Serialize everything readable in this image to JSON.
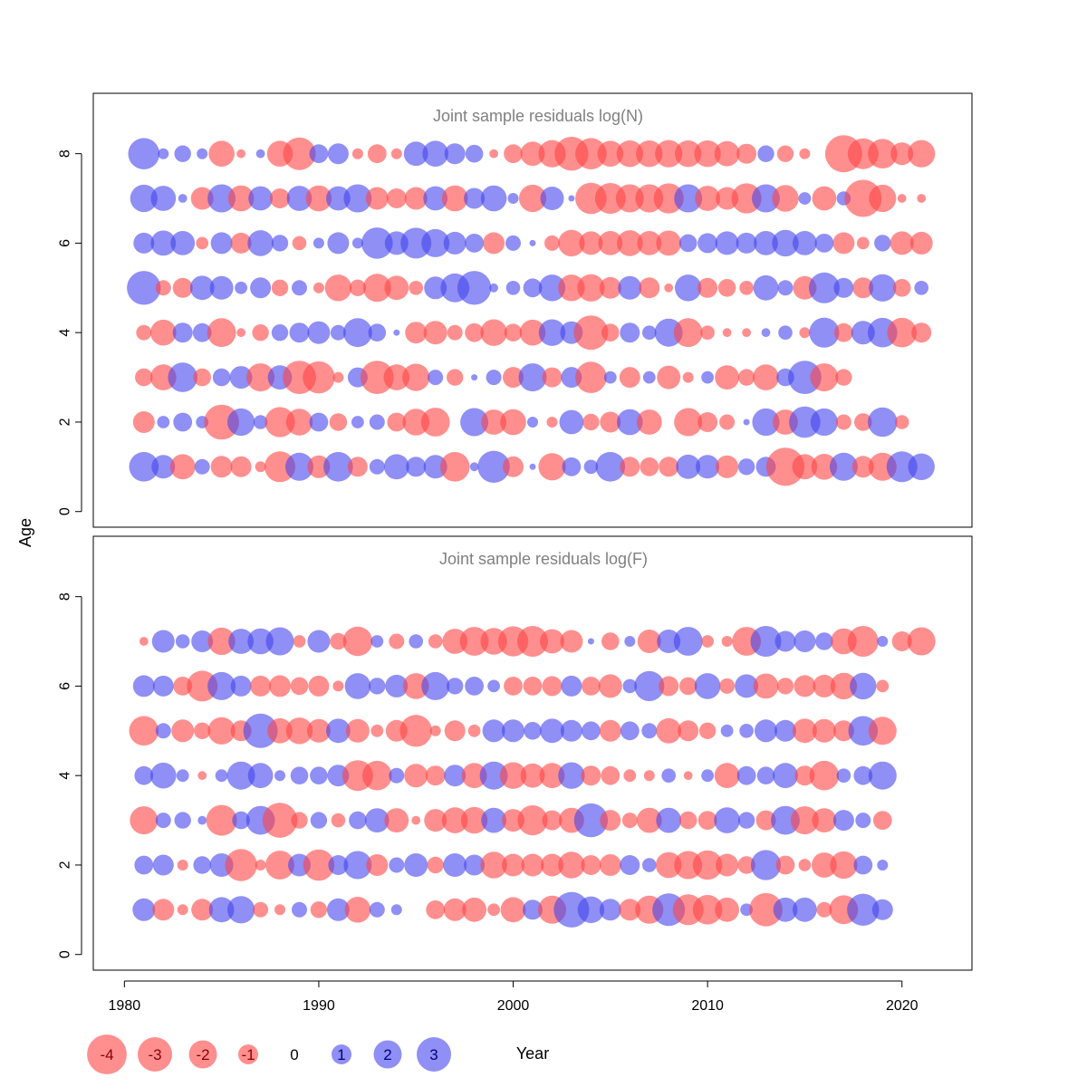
{
  "chart_data": {
    "type": "scatter",
    "subtype": "bubble",
    "xlabel": "Year",
    "ylabel": "Age",
    "xlim": [
      1978.4,
      2023.6
    ],
    "ylim": [
      -0.35,
      9.35
    ],
    "x_ticks": [
      1980,
      1990,
      2000,
      2010,
      2020
    ],
    "y_ticks": [
      0,
      2,
      4,
      6,
      8
    ],
    "colors": {
      "positive": "#4444ee",
      "negative": "#ff4444",
      "opacity": 0.6
    },
    "panels": [
      {
        "title": "Joint sample residuals log(N)",
        "years_start": 1981,
        "ages": [
          1,
          2,
          3,
          4,
          5,
          6,
          7,
          8
        ],
        "residuals": {
          "1": [
            2.2,
            1.4,
            -1.6,
            0.6,
            -1.2,
            -1.1,
            -0.3,
            -2.4,
            2.0,
            -1.3,
            2.2,
            -1.0,
            0.6,
            1.6,
            1.0,
            1.4,
            -2.2,
            0.2,
            2.6,
            -1.1,
            0.1,
            -1.9,
            0.9,
            0.5,
            2.2,
            -1.0,
            -0.9,
            -1.0,
            1.5,
            1.4,
            -1.3,
            0.7,
            1.0,
            -3.7,
            -1.6,
            -1.7,
            2.0,
            -1.2,
            -2.0,
            2.4,
            1.8
          ],
          "2": [
            -1.2,
            0.4,
            0.9,
            0.4,
            -3.1,
            1.9,
            0.5,
            -2.3,
            -1.8,
            0.9,
            -0.8,
            0.4,
            0.6,
            -0.9,
            -1.8,
            -2.1,
            0.0,
            2.0,
            -1.6,
            -1.7,
            0.3,
            -0.3,
            1.5,
            -0.7,
            -1.1,
            1.7,
            -1.6,
            0.0,
            -2.0,
            -1.0,
            -0.6,
            0.1,
            1.9,
            -1.6,
            2.5,
            1.9,
            -0.6,
            -0.8,
            2.2,
            -0.5,
            0.0
          ],
          "3": [
            -0.8,
            -1.7,
            2.2,
            -0.8,
            0.8,
            1.3,
            -2.0,
            1.5,
            -2.8,
            -2.6,
            -0.3,
            1.0,
            -2.8,
            -1.7,
            -1.9,
            0.6,
            -0.7,
            0.1,
            0.6,
            -1.1,
            2.0,
            -1.0,
            1.1,
            -2.5,
            0.4,
            -1.1,
            0.4,
            -1.4,
            -0.3,
            0.4,
            -1.5,
            -0.7,
            -1.7,
            0.8,
            2.8,
            -2.0,
            -0.7,
            0.0,
            0.0,
            0.0,
            0.0
          ],
          "4": [
            -0.6,
            -1.7,
            1.0,
            0.9,
            -2.1,
            -0.2,
            -0.7,
            0.7,
            1.0,
            1.3,
            0.6,
            2.1,
            0.8,
            0.1,
            -1.2,
            -1.4,
            -0.6,
            -0.9,
            -1.8,
            -0.8,
            -1.7,
            1.8,
            1.3,
            -3.0,
            -0.8,
            1.0,
            0.5,
            2.0,
            -2.1,
            -0.5,
            -0.2,
            -0.2,
            0.2,
            0.5,
            -0.3,
            2.3,
            -0.9,
            1.4,
            2.2,
            -2.2,
            -1.0
          ],
          "5": [
            2.9,
            -0.6,
            -1.0,
            1.5,
            1.4,
            0.4,
            1.1,
            -0.7,
            0.6,
            -0.3,
            -1.8,
            -0.7,
            -2.0,
            -1.5,
            -0.5,
            1.3,
            2.1,
            2.9,
            0.2,
            0.5,
            0.9,
            1.8,
            -1.8,
            -1.9,
            -1.2,
            1.4,
            -1.1,
            -0.2,
            1.8,
            -1.0,
            -0.8,
            -0.5,
            1.6,
            0.6,
            -1.4,
            2.4,
            1.0,
            -1.1,
            1.9,
            -0.8,
            0.5
          ],
          "6": [
            1.1,
            1.6,
            1.5,
            -0.4,
            1.2,
            -1.1,
            1.7,
            0.7,
            -0.5,
            0.3,
            1.2,
            0.3,
            2.5,
            1.4,
            2.4,
            2.0,
            1.3,
            0.9,
            -1.2,
            0.6,
            0.1,
            -0.6,
            -1.8,
            -1.4,
            -1.5,
            -1.7,
            -1.5,
            -1.6,
            0.8,
            1.0,
            1.4,
            1.1,
            1.5,
            1.8,
            1.5,
            0.9,
            -1.2,
            -0.4,
            0.7,
            -1.4,
            -1.3
          ],
          "7": [
            1.9,
            1.6,
            0.2,
            -1.3,
            2.0,
            -1.7,
            1.5,
            -1.0,
            1.6,
            -1.7,
            1.5,
            2.0,
            -1.3,
            -1.0,
            -1.3,
            1.5,
            -1.7,
            1.1,
            1.7,
            0.3,
            -1.9,
            1.4,
            0.1,
            -2.5,
            -2.4,
            -2.0,
            -2.0,
            -2.3,
            2.0,
            -1.6,
            -1.3,
            -2.3,
            2.0,
            -1.8,
            0.4,
            -1.5,
            0.5,
            -3.5,
            -1.9,
            -0.2,
            -0.2
          ],
          "8": [
            2.5,
            0.3,
            0.7,
            0.3,
            -1.7,
            -0.2,
            0.2,
            -1.7,
            -2.7,
            0.9,
            1.1,
            -0.3,
            -0.9,
            -0.3,
            1.5,
            1.7,
            1.1,
            0.8,
            -0.2,
            -0.9,
            -1.5,
            -1.9,
            -2.9,
            -2.5,
            -1.7,
            -1.8,
            -1.8,
            -1.9,
            -1.8,
            -1.8,
            -1.6,
            -1.0,
            0.7,
            -0.7,
            -0.3,
            0.0,
            -3.5,
            -2.4,
            -2.2,
            -1.3,
            -1.9
          ]
        }
      },
      {
        "title": "Joint sample residuals log(F)",
        "years_start": 1981,
        "ages": [
          1,
          2,
          3,
          4,
          5,
          6,
          7
        ],
        "residuals": {
          "1": [
            1.3,
            -1.2,
            -0.3,
            -1.2,
            1.6,
            1.9,
            -0.6,
            -0.3,
            0.6,
            -0.7,
            1.3,
            -1.7,
            0.6,
            0.3,
            0.0,
            -0.9,
            -1.3,
            -1.5,
            -0.4,
            -1.6,
            1.0,
            -2.0,
            3.2,
            1.8,
            1.2,
            -1.2,
            -2.0,
            2.7,
            -2.4,
            -2.2,
            -1.5,
            0.4,
            -2.8,
            1.5,
            1.5,
            -0.6,
            -2.1,
            2.6,
            1.1,
            0.0,
            0.0
          ],
          "2": [
            0.9,
            1.1,
            -0.3,
            0.8,
            1.4,
            -2.6,
            -0.3,
            -2.1,
            1.3,
            -2.5,
            1.0,
            2.0,
            -1.2,
            0.6,
            1.4,
            -0.7,
            1.4,
            1.1,
            -1.8,
            -1.3,
            -1.3,
            -1.3,
            -1.8,
            -1.0,
            -1.2,
            1.0,
            0.5,
            -1.7,
            -2.0,
            -2.2,
            -1.3,
            -0.8,
            2.3,
            -0.9,
            -0.4,
            -1.6,
            -1.9,
            0.9,
            0.3,
            0.0,
            0.0
          ],
          "3": [
            -2.0,
            0.6,
            0.7,
            0.2,
            -2.4,
            0.8,
            2.1,
            -3.1,
            -0.7,
            0.7,
            -0.5,
            0.8,
            1.5,
            -1.5,
            -0.2,
            -1.3,
            -1.7,
            -1.8,
            1.6,
            -1.3,
            -2.3,
            -1.0,
            -1.6,
            2.9,
            -1.1,
            -0.6,
            -1.6,
            1.6,
            -0.8,
            -0.9,
            1.7,
            0.7,
            -1.0,
            2.1,
            -2.0,
            -1.5,
            1.1,
            0.6,
            -0.9,
            0.0,
            0.0
          ],
          "4": [
            0.9,
            1.7,
            0.4,
            -0.2,
            0.4,
            2.0,
            1.6,
            0.3,
            0.8,
            0.8,
            1.2,
            -2.4,
            -2.2,
            0.6,
            -1.4,
            -1.0,
            1.2,
            -1.6,
            2.0,
            -1.8,
            -1.5,
            -1.6,
            1.8,
            -1.0,
            -0.9,
            -0.4,
            -0.3,
            0.5,
            -0.2,
            0.4,
            -1.6,
            0.9,
            0.8,
            1.6,
            -1.0,
            -2.2,
            0.5,
            0.9,
            2.0,
            0.0,
            0.0
          ],
          "5": [
            -2.2,
            0.6,
            -1.3,
            -0.7,
            -1.9,
            -1.1,
            3.0,
            -1.6,
            -1.8,
            -1.4,
            1.5,
            -1.4,
            -0.4,
            -1.2,
            -2.6,
            -0.3,
            -1.1,
            -0.4,
            1.3,
            1.3,
            0.8,
            1.5,
            1.2,
            0.9,
            -1.2,
            0.9,
            0.6,
            -1.6,
            -1.1,
            -0.7,
            0.4,
            0.5,
            1.3,
            1.2,
            -1.5,
            -1.4,
            -1.1,
            2.2,
            -2.0,
            0.0,
            0.0
          ],
          "6": [
            1.2,
            1.1,
            -0.9,
            -2.4,
            2.0,
            1.1,
            -1.1,
            -1.2,
            -0.8,
            -1.1,
            -0.3,
            1.7,
            0.7,
            1.3,
            -1.7,
            2.0,
            0.7,
            0.9,
            0.4,
            -0.9,
            -0.9,
            -1.0,
            1.1,
            -0.9,
            -1.4,
            0.5,
            2.3,
            -1.0,
            -0.8,
            1.7,
            -0.6,
            1.4,
            -1.6,
            -0.7,
            -1.2,
            -1.3,
            -1.8,
            1.8,
            -0.4,
            0.0,
            0.0
          ],
          "7": [
            -0.2,
            1.3,
            0.5,
            1.2,
            -1.9,
            1.6,
            1.7,
            2.0,
            -0.4,
            1.3,
            -0.7,
            -2.2,
            0.4,
            -0.6,
            0.5,
            -0.5,
            -1.6,
            -2.1,
            -1.8,
            -2.3,
            -2.4,
            -1.5,
            -1.3,
            0.1,
            -0.8,
            0.3,
            -1.4,
            1.4,
            2.1,
            -0.4,
            -0.3,
            -2.1,
            2.4,
            1.1,
            1.2,
            0.8,
            -1.7,
            -2.4,
            0.3,
            -1.0,
            -2.0
          ]
        }
      }
    ],
    "legend": {
      "title": "Year",
      "values": [
        -4,
        -3,
        -2,
        -1,
        0,
        1,
        2,
        3
      ],
      "labels": [
        "-4",
        "-3",
        "-2",
        "-1",
        "0",
        "1",
        "2",
        "3"
      ]
    }
  }
}
